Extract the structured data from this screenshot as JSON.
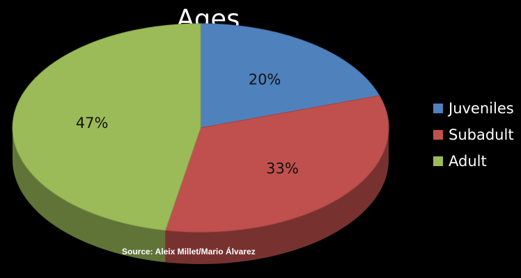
{
  "chart_data": {
    "type": "pie",
    "title": "Ages",
    "categories": [
      "Juveniles",
      "Subadult",
      "Adult"
    ],
    "values": [
      20,
      33,
      47
    ],
    "data_labels": [
      "20%",
      "33%",
      "47%"
    ],
    "colors": [
      "#4f81bd",
      "#c0504d",
      "#9bbb59"
    ],
    "style": "3d",
    "legend_position": "right"
  },
  "source_note": "Source: Aleix Millet/Mario Álvarez",
  "background_color": "#000000"
}
